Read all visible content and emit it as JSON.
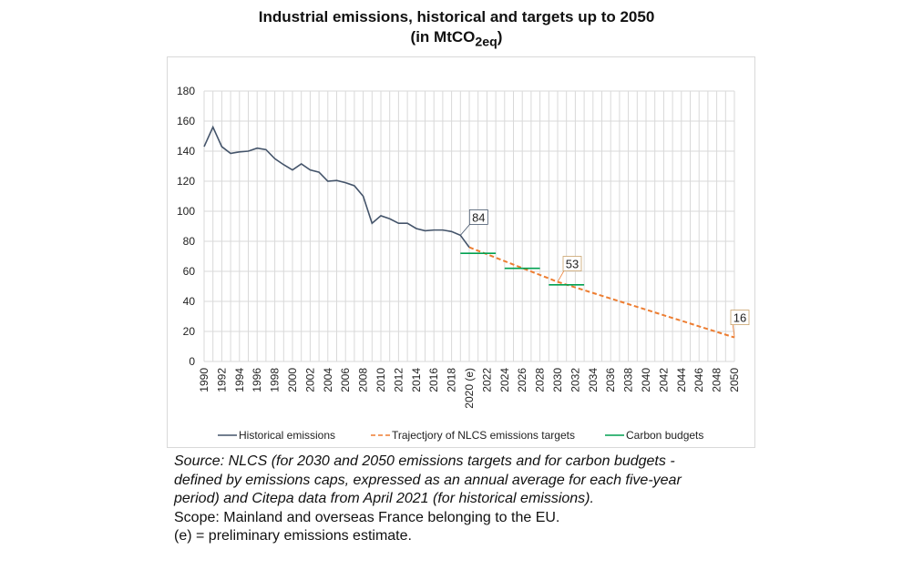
{
  "title": {
    "line1": "Industrial emissions, historical and targets up to 2050",
    "line2_prefix": "(in MtCO",
    "line2_sub": "2eq",
    "line2_suffix": ")"
  },
  "chart_data": {
    "type": "line",
    "ylim": [
      0,
      180
    ],
    "yticks": [
      0,
      20,
      40,
      60,
      80,
      100,
      120,
      140,
      160,
      180
    ],
    "xlim": [
      1990,
      2050
    ],
    "xtick_labels": [
      "1990",
      "1992",
      "1994",
      "1996",
      "1998",
      "2000",
      "2002",
      "2004",
      "2006",
      "2008",
      "2010",
      "2012",
      "2014",
      "2016",
      "2018",
      "2020 (e)",
      "2022",
      "2024",
      "2026",
      "2028",
      "2030",
      "2032",
      "2034",
      "2036",
      "2038",
      "2040",
      "2042",
      "2044",
      "2046",
      "2048",
      "2050"
    ],
    "grid": true,
    "legend_position": "bottom",
    "series": [
      {
        "name": "Historical emissions",
        "color": "#44546a",
        "style": "solid",
        "x": [
          1990,
          1991,
          1992,
          1993,
          1994,
          1995,
          1996,
          1997,
          1998,
          1999,
          2000,
          2001,
          2002,
          2003,
          2004,
          2005,
          2006,
          2007,
          2008,
          2009,
          2010,
          2011,
          2012,
          2013,
          2014,
          2015,
          2016,
          2017,
          2018,
          2019,
          2020
        ],
        "y": [
          143,
          156,
          143,
          138.5,
          139.5,
          140,
          142,
          141,
          135,
          131,
          127.5,
          131.5,
          127.5,
          126,
          120,
          120.5,
          119,
          117,
          110,
          92,
          97,
          95,
          92,
          92,
          88.5,
          87,
          87.5,
          87.5,
          86.5,
          84,
          76
        ]
      },
      {
        "name": "Trajectjory of NLCS emissions targets",
        "color": "#ed7d31",
        "style": "dashed",
        "x": [
          2020,
          2030,
          2050
        ],
        "y": [
          76,
          53,
          16
        ]
      },
      {
        "name": "Carbon budgets",
        "color": "#00a050",
        "style": "solid",
        "segments": [
          {
            "x": [
              2019,
              2023
            ],
            "y": 72
          },
          {
            "x": [
              2024,
              2028
            ],
            "y": 62
          },
          {
            "x": [
              2029,
              2033
            ],
            "y": 51
          }
        ]
      }
    ],
    "annotations": [
      {
        "x": 2019,
        "y": 84,
        "text": "84"
      },
      {
        "x": 2030,
        "y": 53,
        "text": "53"
      },
      {
        "x": 2050,
        "y": 16,
        "text": "16"
      }
    ]
  },
  "source": {
    "line1": "Source: NLCS (for 2030 and 2050 emissions targets and for carbon budgets -",
    "line2": "defined by emissions caps, expressed as an annual average for each five-year",
    "line3": "period) and Citepa data from April 2021 (for historical emissions).",
    "line4": "Scope: Mainland and overseas France belonging to the EU.",
    "line5": "(e) = preliminary emissions estimate."
  }
}
